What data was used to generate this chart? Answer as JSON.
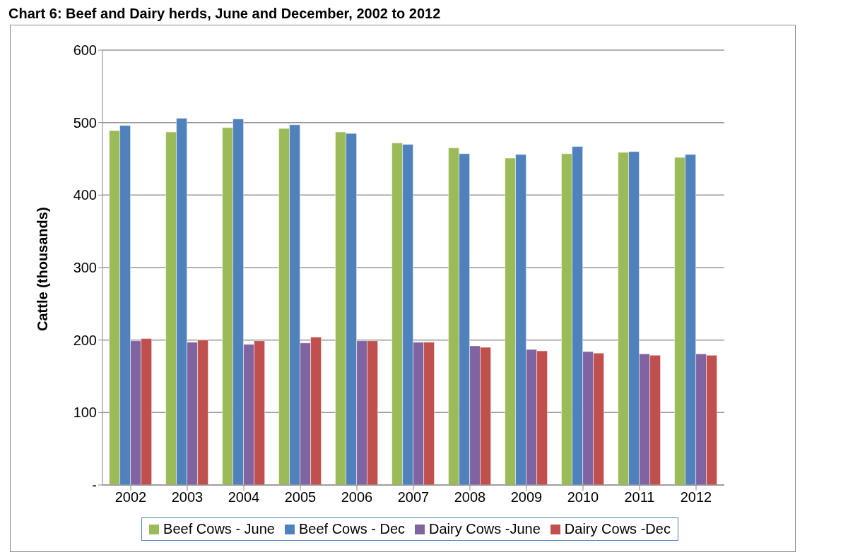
{
  "chart_data": {
    "type": "bar",
    "title": "Chart 6: Beef and Dairy herds, June and December, 2002 to 2012",
    "ylabel": "Cattle (thousands)",
    "categories": [
      "2002",
      "2003",
      "2004",
      "2005",
      "2006",
      "2007",
      "2008",
      "2009",
      "2010",
      "2011",
      "2012"
    ],
    "series": [
      {
        "name": "Beef Cows - June",
        "color": "#9bbb59",
        "values": [
          489,
          487,
          493,
          492,
          487,
          472,
          465,
          451,
          457,
          459,
          452
        ]
      },
      {
        "name": "Beef Cows - Dec",
        "color": "#4f81bd",
        "values": [
          496,
          506,
          505,
          497,
          485,
          470,
          457,
          456,
          467,
          460,
          456
        ]
      },
      {
        "name": "Dairy Cows -June",
        "color": "#8064a2",
        "values": [
          199,
          197,
          194,
          196,
          199,
          197,
          192,
          187,
          184,
          181,
          181
        ]
      },
      {
        "name": "Dairy Cows -Dec",
        "color": "#c0504d",
        "values": [
          202,
          200,
          199,
          204,
          199,
          197,
          190,
          185,
          182,
          179,
          179
        ]
      }
    ],
    "ylim": [
      0,
      600
    ],
    "yticks": [
      {
        "value": 0,
        "label": "-"
      },
      100,
      200,
      300,
      400,
      500,
      600
    ],
    "grid": "y",
    "legend": "bottom"
  }
}
